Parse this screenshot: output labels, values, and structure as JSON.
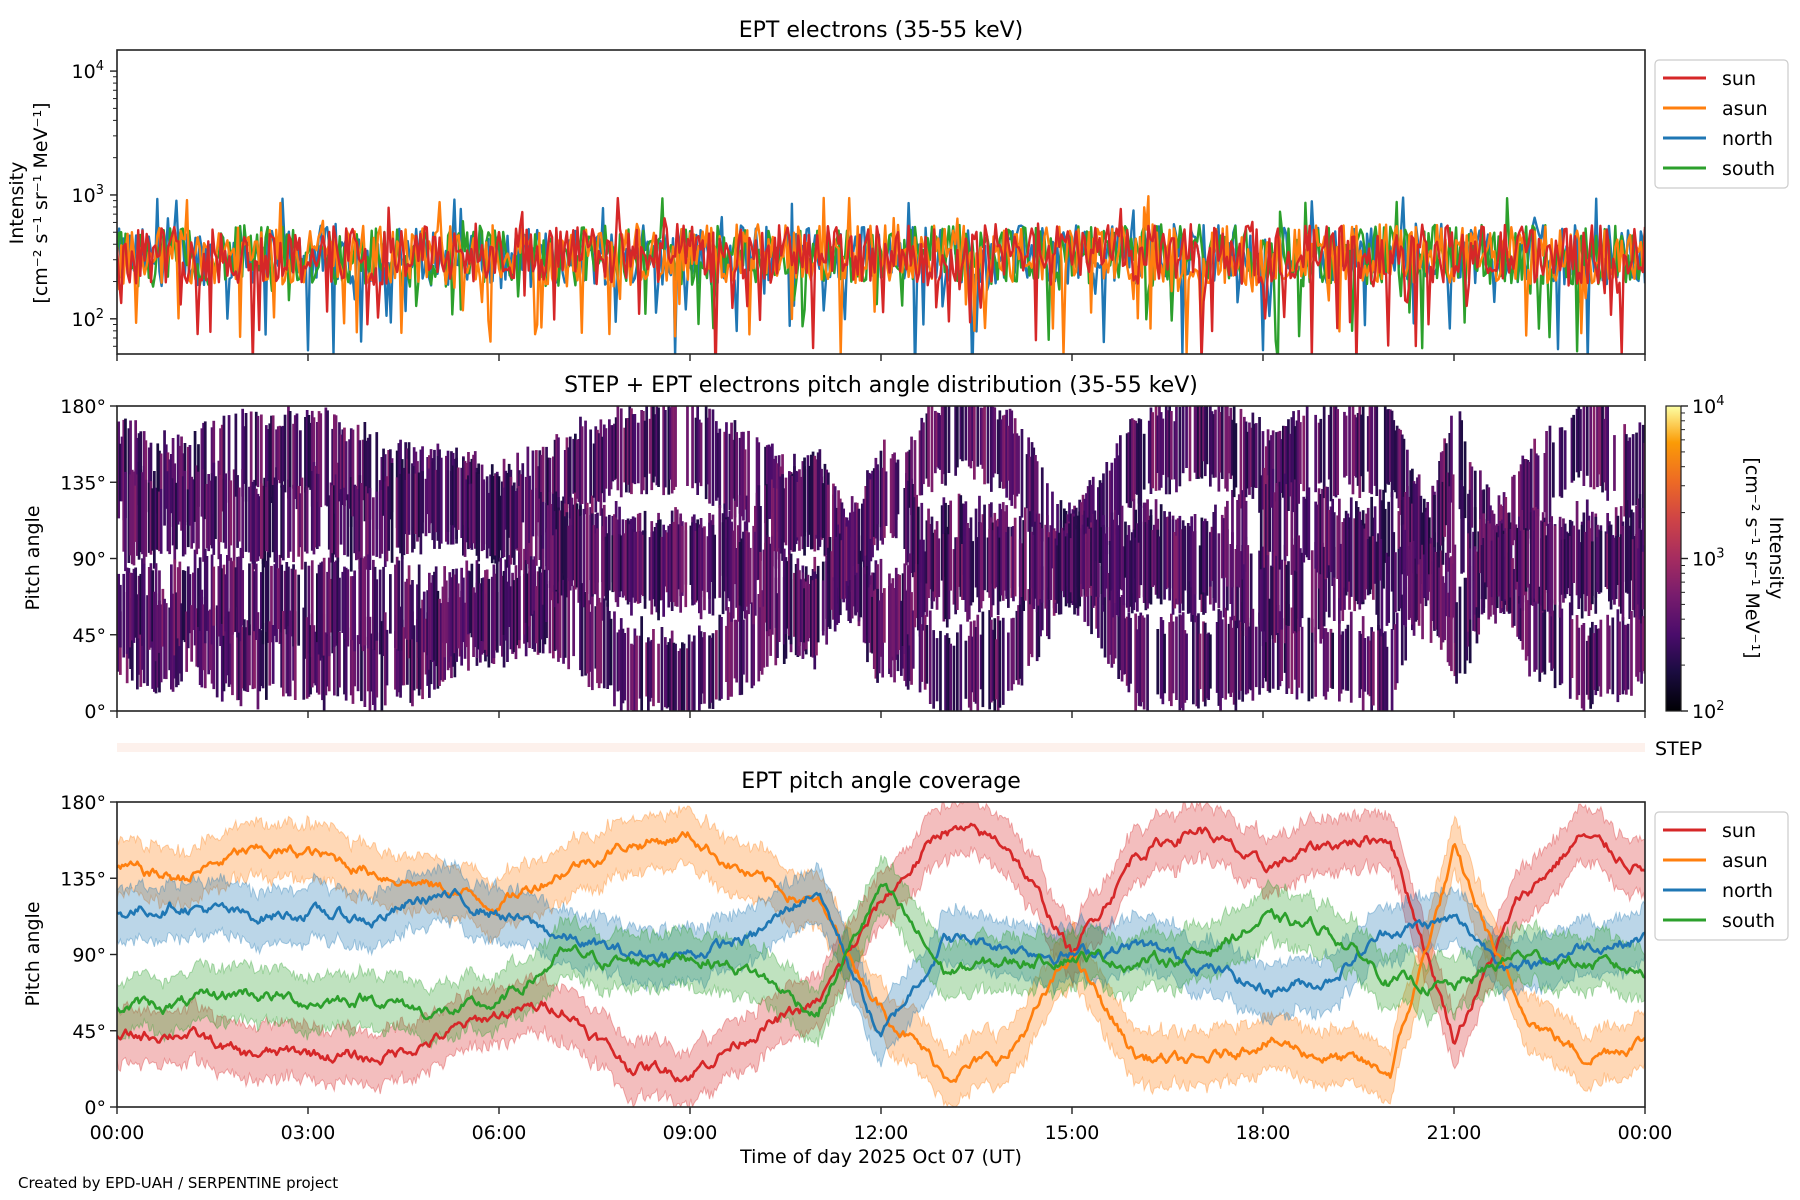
{
  "footer": "Created by EPD-UAH / SERPENTINE project",
  "colors": {
    "sun": "#d62728",
    "asun": "#ff7f0e",
    "north": "#1f77b4",
    "south": "#2ca02c",
    "step_band": "#fdf1ec",
    "axis": "#222222"
  },
  "chart_data": [
    {
      "type": "line",
      "title": "EPT electrons (35-55 keV)",
      "ylabel_line1": "Intensity",
      "ylabel_line2": "[cm⁻² s⁻¹ sr⁻¹ MeV⁻¹]",
      "yscale": "log",
      "ylim": [
        52,
        14800
      ],
      "yticks": [
        {
          "value": 100,
          "base": "10",
          "exp": "2"
        },
        {
          "value": 1000,
          "base": "10",
          "exp": "3"
        },
        {
          "value": 10000,
          "base": "10",
          "exp": "4"
        }
      ],
      "x_hours": [
        0,
        1,
        2,
        3,
        4,
        5,
        6,
        7,
        8,
        9,
        10,
        11,
        12,
        13,
        14,
        15,
        16,
        17,
        18,
        19,
        20,
        21,
        22,
        23,
        24
      ],
      "xlim_hours": [
        0,
        24
      ],
      "legend": {
        "position": "outside-top-right",
        "entries": [
          "sun",
          "asun",
          "north",
          "south"
        ]
      },
      "series": [
        {
          "name": "sun",
          "values": [
            330,
            340,
            320,
            330,
            320,
            330,
            350,
            330,
            320,
            340,
            330,
            340,
            330,
            320,
            350,
            340,
            330,
            340,
            320,
            330,
            340,
            330,
            340,
            330,
            330
          ]
        },
        {
          "name": "asun",
          "values": [
            320,
            330,
            340,
            320,
            330,
            320,
            330,
            320,
            310,
            330,
            340,
            330,
            340,
            330,
            320,
            330,
            340,
            330,
            320,
            330,
            340,
            330,
            320,
            330,
            330
          ]
        },
        {
          "name": "north",
          "values": [
            310,
            320,
            330,
            330,
            320,
            320,
            300,
            320,
            330,
            320,
            330,
            330,
            340,
            330,
            330,
            320,
            330,
            350,
            340,
            330,
            330,
            340,
            330,
            330,
            330
          ]
        },
        {
          "name": "south",
          "values": [
            300,
            320,
            330,
            320,
            320,
            310,
            300,
            320,
            330,
            320,
            330,
            340,
            330,
            330,
            330,
            320,
            340,
            350,
            340,
            330,
            330,
            330,
            330,
            330,
            330
          ]
        }
      ]
    },
    {
      "type": "heatmap",
      "title": "STEP + EPT electrons pitch angle distribution (35-55 keV)",
      "ylabel": "Pitch angle",
      "ylim": [
        0,
        180
      ],
      "yticks": [
        "0°",
        "45°",
        "90°",
        "135°",
        "180°"
      ],
      "colormap": "inferno",
      "colorbar": {
        "scale": "log",
        "range": [
          100,
          10000
        ],
        "ticks": [
          {
            "value": 100,
            "base": "10",
            "exp": "2"
          },
          {
            "value": 1000,
            "base": "10",
            "exp": "3"
          },
          {
            "value": 10000,
            "base": "10",
            "exp": "4"
          }
        ],
        "label_line1": "Intensity",
        "label_line2": "[cm⁻² s⁻¹ sr⁻¹ MeV⁻¹]"
      },
      "typical_intensity": 350,
      "sector_halfwidth_deg": 20
    },
    {
      "type": "bar",
      "label": "STEP",
      "note_values": []
    },
    {
      "type": "line",
      "title": "EPT pitch angle coverage",
      "ylabel": "Pitch angle",
      "xlabel": "Time of day 2025 Oct 07 (UT)",
      "ylim": [
        0,
        180
      ],
      "yticks": [
        "0°",
        "45°",
        "90°",
        "135°",
        "180°"
      ],
      "xticks": [
        "00:00",
        "03:00",
        "06:00",
        "09:00",
        "12:00",
        "15:00",
        "18:00",
        "21:00",
        "00:00"
      ],
      "x_hours": [
        0,
        1,
        2,
        3,
        4,
        5,
        6,
        7,
        8,
        9,
        10,
        11,
        12,
        13,
        14,
        15,
        16,
        17,
        18,
        19,
        20,
        21,
        22,
        23,
        24
      ],
      "band_halfwidth_deg": 16,
      "legend": {
        "position": "outside-top-right",
        "entries": [
          "sun",
          "asun",
          "north",
          "south"
        ]
      },
      "series": [
        {
          "name": "sun",
          "values": [
            40,
            45,
            30,
            32,
            28,
            40,
            55,
            60,
            25,
            20,
            45,
            60,
            120,
            165,
            155,
            90,
            150,
            165,
            140,
            155,
            160,
            40,
            120,
            160,
            140
          ]
        },
        {
          "name": "asun",
          "values": [
            140,
            135,
            150,
            150,
            140,
            130,
            120,
            140,
            155,
            160,
            135,
            120,
            60,
            20,
            30,
            90,
            30,
            25,
            40,
            30,
            20,
            150,
            60,
            30,
            40
          ]
        },
        {
          "name": "north",
          "values": [
            115,
            120,
            112,
            115,
            110,
            125,
            115,
            100,
            90,
            90,
            100,
            130,
            40,
            100,
            95,
            90,
            95,
            85,
            70,
            75,
            105,
            110,
            80,
            95,
            100
          ]
        },
        {
          "name": "south",
          "values": [
            60,
            60,
            68,
            62,
            65,
            55,
            60,
            90,
            85,
            90,
            80,
            55,
            130,
            80,
            85,
            90,
            85,
            90,
            110,
            105,
            75,
            70,
            90,
            85,
            80
          ]
        }
      ]
    }
  ]
}
